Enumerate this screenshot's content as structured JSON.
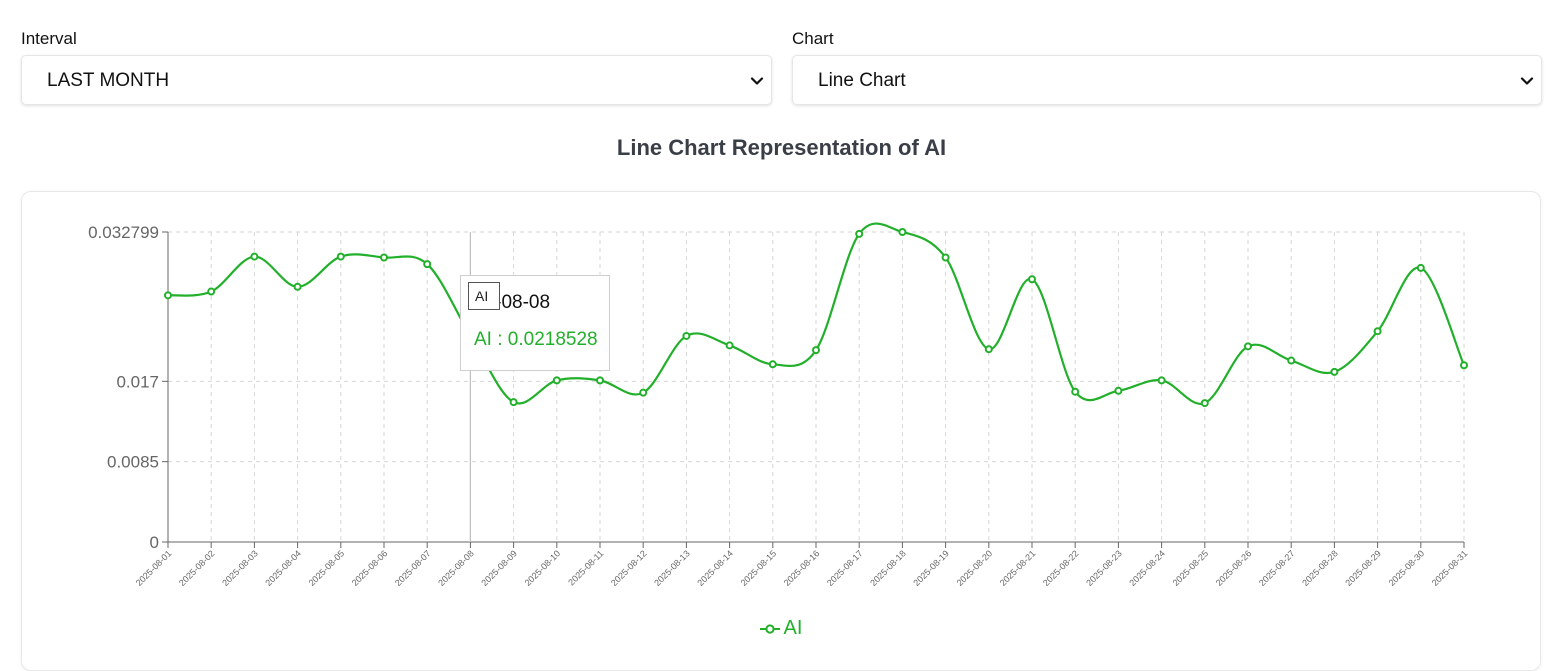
{
  "controls": {
    "interval": {
      "label": "Interval",
      "value": "LAST MONTH"
    },
    "chart": {
      "label": "Chart",
      "value": "Line Chart"
    }
  },
  "colors": {
    "series": "#22b02b",
    "grid": "#d6d6d6",
    "axis": "#666666"
  },
  "icons": {
    "select_arrow": "chevron-down-icon"
  },
  "chart_data": {
    "type": "line",
    "title": "Line Chart Representation of AI",
    "xlabel": "",
    "ylabel": "",
    "ylim": [
      0,
      0.032799
    ],
    "yticks": [
      "0",
      "0.0085",
      "0.017",
      "0.032799"
    ],
    "grid": true,
    "legend": "bottom",
    "x": [
      "2025-08-01",
      "2025-08-02",
      "2025-08-03",
      "2025-08-04",
      "2025-08-05",
      "2025-08-06",
      "2025-08-07",
      "2025-08-08",
      "2025-08-09",
      "2025-08-10",
      "2025-08-11",
      "2025-08-12",
      "2025-08-13",
      "2025-08-14",
      "2025-08-15",
      "2025-08-16",
      "2025-08-17",
      "2025-08-18",
      "2025-08-19",
      "2025-08-20",
      "2025-08-21",
      "2025-08-22",
      "2025-08-23",
      "2025-08-24",
      "2025-08-25",
      "2025-08-26",
      "2025-08-27",
      "2025-08-28",
      "2025-08-29",
      "2025-08-30",
      "2025-08-31"
    ],
    "series": [
      {
        "name": "AI",
        "values": [
          0.0261,
          0.0265,
          0.0302,
          0.027,
          0.0302,
          0.0301,
          0.0294,
          0.0218528,
          0.0148,
          0.0171,
          0.0171,
          0.0158,
          0.0218,
          0.0208,
          0.0188,
          0.0203,
          0.0326,
          0.0328,
          0.0301,
          0.0204,
          0.0278,
          0.0159,
          0.016,
          0.0171,
          0.0147,
          0.0207,
          0.0192,
          0.018,
          0.0223,
          0.029,
          0.0187
        ]
      }
    ]
  },
  "tooltip": {
    "badge": "AI",
    "date": "25-08-08",
    "label": "AI : 0.0218528"
  },
  "legend": {
    "label": "AI"
  }
}
